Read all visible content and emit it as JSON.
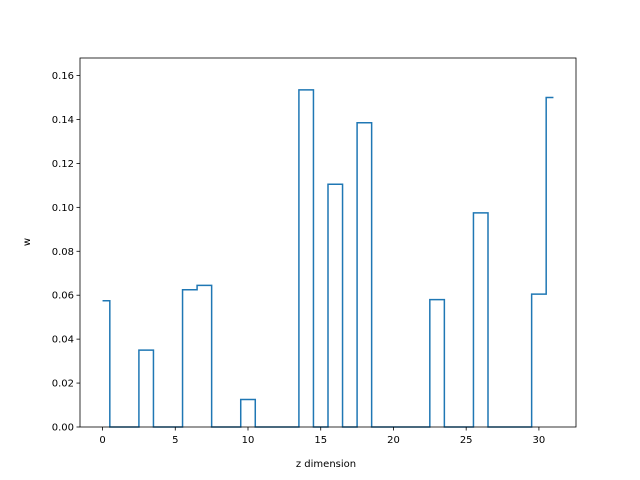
{
  "chart_data": {
    "type": "line",
    "drawstyle": "steps-mid",
    "title": "",
    "xlabel": "z dimension",
    "ylabel": "w",
    "xlim": [
      -1.55,
      32.55
    ],
    "ylim": [
      0,
      0.168
    ],
    "x_ticks": [
      0,
      5,
      10,
      15,
      20,
      25,
      30
    ],
    "y_ticks": [
      0.0,
      0.02,
      0.04,
      0.06,
      0.08,
      0.1,
      0.12,
      0.14,
      0.16
    ],
    "grid": false,
    "legend": "none",
    "color": "#1f77b4",
    "series": [
      {
        "x": [
          0,
          1,
          2,
          3,
          4,
          5,
          6,
          7,
          8,
          9,
          10,
          11,
          12,
          13,
          14,
          15,
          16,
          17,
          18,
          19,
          20,
          21,
          22,
          23,
          24,
          25,
          26,
          27,
          28,
          29,
          30,
          31
        ],
        "values": [
          0.0575,
          0,
          0,
          0.035,
          0,
          0,
          0.0625,
          0.0645,
          0,
          0,
          0.0125,
          0,
          0,
          0,
          0.1535,
          0,
          0.1105,
          0,
          0.1385,
          0,
          0,
          0,
          0,
          0.058,
          0,
          0,
          0.0975,
          0,
          0,
          0,
          0.0605,
          0.15
        ]
      }
    ]
  }
}
